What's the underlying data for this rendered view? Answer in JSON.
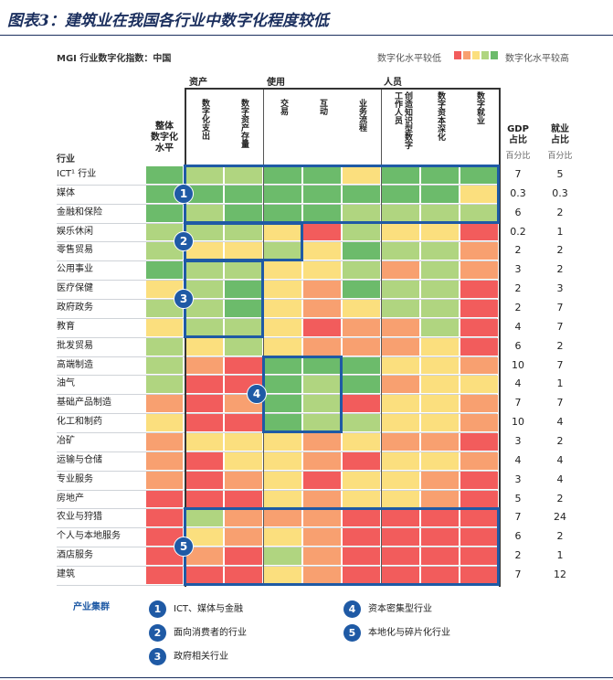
{
  "title": "图表3：建筑业在我国各行业中数字化程度较低",
  "subtitle": "MGI 行业数字化指数：中国",
  "legend": {
    "low_label": "数字化水平较低",
    "high_label": "数字化水平较高",
    "colors": [
      "#f25c5c",
      "#f8a070",
      "#fbdf7e",
      "#b0d580",
      "#6cbb6b"
    ]
  },
  "headers": {
    "row_header": "行业",
    "overall": [
      "整体",
      "数字化",
      "水平"
    ],
    "groups": [
      "资产",
      "使用",
      "人员"
    ],
    "columns": [
      "数字化支出",
      "数字资产存量",
      "交易",
      "互动",
      "业务流程",
      "创造知识型数字工作人员",
      "数字资本深化",
      "数字就业"
    ],
    "gdp": [
      "GDP",
      "占比"
    ],
    "emp": [
      "就业",
      "占比"
    ],
    "unit": "百分比"
  },
  "chart_data": {
    "type": "heatmap",
    "color_scale": "1 = 数字化水平较低 … 5 = 数字化水平较高",
    "rows": [
      "ICT¹ 行业",
      "媒体",
      "金融和保险",
      "娱乐休闲",
      "零售贸易",
      "公用事业",
      "医疗保健",
      "政府政务",
      "教育",
      "批发贸易",
      "高端制造",
      "油气",
      "基础产品制造",
      "化工和制药",
      "冶矿",
      "运输与仓储",
      "专业服务",
      "房地产",
      "农业与狩猎",
      "个人与本地服务",
      "酒店服务",
      "建筑"
    ],
    "columns": [
      "整体数字化水平",
      "数字化支出",
      "数字资产存量",
      "交易",
      "互动",
      "业务流程",
      "创造知识型数字工作人员",
      "数字资本深化",
      "数字就业"
    ],
    "levels": [
      [
        5,
        4,
        4,
        5,
        5,
        3,
        5,
        5,
        5
      ],
      [
        5,
        5,
        5,
        5,
        5,
        5,
        5,
        5,
        3
      ],
      [
        5,
        4,
        5,
        5,
        5,
        4,
        4,
        4,
        4
      ],
      [
        4,
        4,
        4,
        3,
        1,
        4,
        3,
        3,
        1
      ],
      [
        4,
        3,
        3,
        4,
        3,
        5,
        4,
        4,
        2
      ],
      [
        5,
        4,
        4,
        3,
        3,
        4,
        2,
        4,
        2
      ],
      [
        3,
        4,
        5,
        3,
        2,
        5,
        4,
        4,
        1
      ],
      [
        4,
        4,
        5,
        3,
        2,
        3,
        4,
        4,
        1
      ],
      [
        3,
        4,
        4,
        3,
        1,
        2,
        2,
        4,
        1
      ],
      [
        4,
        3,
        4,
        3,
        2,
        2,
        2,
        3,
        1
      ],
      [
        4,
        2,
        1,
        5,
        5,
        5,
        3,
        3,
        2
      ],
      [
        4,
        1,
        1,
        5,
        4,
        5,
        2,
        3,
        3
      ],
      [
        2,
        1,
        2,
        5,
        4,
        1,
        3,
        3,
        2
      ],
      [
        3,
        1,
        1,
        5,
        4,
        4,
        3,
        3,
        2
      ],
      [
        2,
        3,
        3,
        3,
        2,
        3,
        2,
        2,
        1
      ],
      [
        2,
        1,
        3,
        3,
        2,
        1,
        3,
        3,
        2
      ],
      [
        2,
        1,
        2,
        3,
        1,
        3,
        3,
        2,
        1
      ],
      [
        1,
        1,
        1,
        3,
        2,
        3,
        3,
        2,
        1
      ],
      [
        1,
        4,
        2,
        2,
        2,
        1,
        1,
        1,
        1
      ],
      [
        1,
        3,
        2,
        3,
        2,
        1,
        1,
        1,
        1
      ],
      [
        1,
        2,
        1,
        4,
        2,
        1,
        1,
        1,
        1
      ],
      [
        1,
        1,
        1,
        3,
        2,
        1,
        1,
        1,
        1
      ]
    ],
    "gdp_share": [
      "7",
      "0.3",
      "6",
      "0.2",
      "2",
      "3",
      "2",
      "2",
      "4",
      "6",
      "10",
      "4",
      "7",
      "10",
      "3",
      "4",
      "3",
      "5",
      "7",
      "6",
      "2",
      "7"
    ],
    "emp_share": [
      "5",
      "0.3",
      "2",
      "1",
      "2",
      "2",
      "3",
      "7",
      "7",
      "2",
      "7",
      "1",
      "7",
      "4",
      "2",
      "4",
      "4",
      "2",
      "24",
      "2",
      "1",
      "12"
    ],
    "clusters": [
      {
        "id": "1",
        "label": "ICT、媒体与金融",
        "rows": [
          0,
          2
        ],
        "cols": [
          1,
          8
        ]
      },
      {
        "id": "2",
        "label": "面向消费者的行业",
        "rows": [
          3,
          4
        ],
        "cols": [
          1,
          3
        ]
      },
      {
        "id": "3",
        "label": "政府相关行业",
        "rows": [
          5,
          8
        ],
        "cols": [
          1,
          2
        ]
      },
      {
        "id": "4",
        "label": "资本密集型行业",
        "rows": [
          10,
          13
        ],
        "cols": [
          3,
          4
        ]
      },
      {
        "id": "5",
        "label": "本地化与碎片化行业",
        "rows": [
          18,
          21
        ],
        "cols": [
          1,
          8
        ]
      }
    ]
  },
  "cluster_legend_title": "产业集群"
}
